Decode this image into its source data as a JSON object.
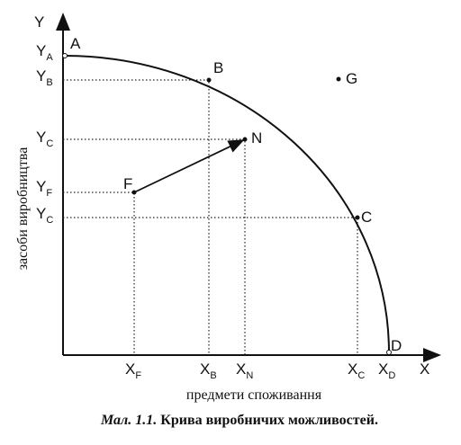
{
  "axes": {
    "y": "Y",
    "x": "X",
    "y_title": "засоби виробництва",
    "x_title": "предмети споживання"
  },
  "points": [
    {
      "label": "A"
    },
    {
      "label": "B"
    },
    {
      "label": "C"
    },
    {
      "label": "D"
    },
    {
      "label": "F"
    },
    {
      "label": "N"
    },
    {
      "label": "G"
    }
  ],
  "y_ticks": [
    {
      "base": "Y",
      "sub": "A"
    },
    {
      "base": "Y",
      "sub": "B"
    },
    {
      "base": "Y",
      "sub": "C"
    },
    {
      "base": "Y",
      "sub": "F"
    },
    {
      "base": "Y",
      "sub": "C"
    }
  ],
  "x_ticks": [
    {
      "base": "X",
      "sub": "F"
    },
    {
      "base": "X",
      "sub": "B"
    },
    {
      "base": "X",
      "sub": "N"
    },
    {
      "base": "X",
      "sub": "C"
    },
    {
      "base": "X",
      "sub": "D"
    }
  ],
  "caption": {
    "label": "Мал. 1.1.",
    "text": "Крива виробничих можливостей."
  }
}
